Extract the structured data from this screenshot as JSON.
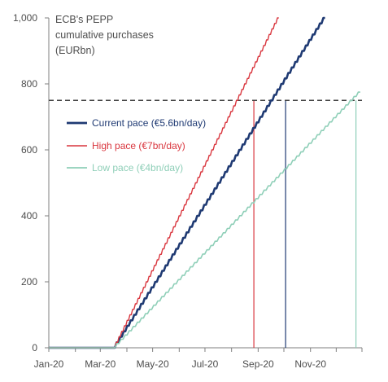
{
  "chart_data": {
    "type": "line",
    "title_lines": [
      "ECB's PEPP",
      "cumulative purchases",
      "(EURbn)"
    ],
    "xlabel": "",
    "ylabel": "",
    "x_ticks": [
      "Jan-20",
      "Mar-20",
      "May-20",
      "Jul-20",
      "Sep-20",
      "Nov-20"
    ],
    "y_ticks": [
      "0",
      "200",
      "400",
      "600",
      "800",
      "1,000"
    ],
    "ylim": [
      0,
      1000
    ],
    "reference_line": {
      "value": 750,
      "style": "dashed",
      "color": "#404040"
    },
    "series": [
      {
        "name": "Current  pace (€5.6bn/day)",
        "color": "#1f3a73",
        "points": [
          [
            "2020-01-01",
            0
          ],
          [
            "2020-03-18",
            0
          ],
          [
            "2020-11-18",
            1000
          ]
        ],
        "hits_750_on": "2020-10-03"
      },
      {
        "name": "High pace (€7bn/day)",
        "color": "#d9363e",
        "points": [
          [
            "2020-01-01",
            0
          ],
          [
            "2020-03-18",
            0
          ],
          [
            "2020-09-25",
            1000
          ]
        ],
        "hits_750_on": "2020-08-27"
      },
      {
        "name": "Low pace (€4bn/day)",
        "color": "#8fcfb8",
        "points": [
          [
            "2020-01-01",
            0
          ],
          [
            "2020-03-18",
            0
          ],
          [
            "2020-12-29",
            775
          ]
        ],
        "hits_750_on": "2020-12-24"
      }
    ],
    "grid": false,
    "legend_position": "left-center"
  }
}
